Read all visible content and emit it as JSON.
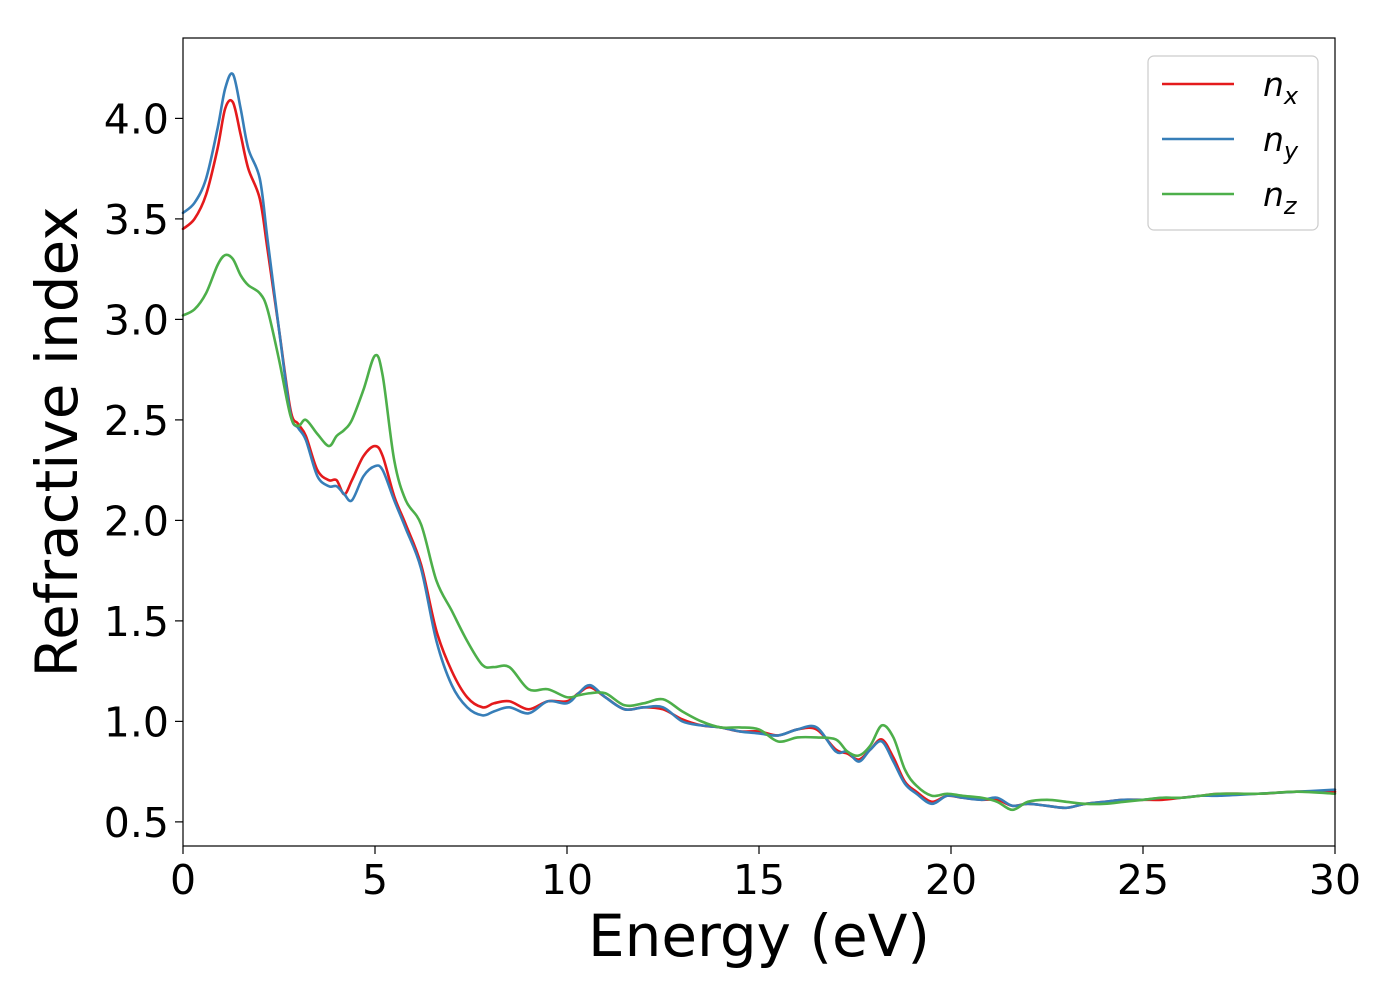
{
  "chart_data": {
    "type": "line",
    "title": "",
    "xlabel": "Energy (eV)",
    "ylabel": "Refractive index",
    "xlim": [
      0,
      30
    ],
    "ylim": [
      0.38,
      4.4
    ],
    "xticks": [
      0,
      5,
      10,
      15,
      20,
      25,
      30
    ],
    "yticks": [
      0.5,
      1.0,
      1.5,
      2.0,
      2.5,
      3.0,
      3.5,
      4.0
    ],
    "ytick_labels": [
      "0.5",
      "1.0",
      "1.5",
      "2.0",
      "2.5",
      "3.0",
      "3.5",
      "4.0"
    ],
    "grid": false,
    "legend_position": "top-right",
    "series": [
      {
        "name": "n",
        "subscript": "x",
        "color": "#e41a1c",
        "x": [
          0,
          0.3,
          0.6,
          0.9,
          1.1,
          1.3,
          1.5,
          1.7,
          2.0,
          2.2,
          2.5,
          2.8,
          3.0,
          3.2,
          3.5,
          3.8,
          4.0,
          4.2,
          4.4,
          4.7,
          5.0,
          5.2,
          5.5,
          5.8,
          6.2,
          6.6,
          7.0,
          7.4,
          7.8,
          8.1,
          8.5,
          9.0,
          9.5,
          10.0,
          10.3,
          10.6,
          11.0,
          11.5,
          12.0,
          12.5,
          13.0,
          13.5,
          14.0,
          14.5,
          15.0,
          15.5,
          16.0,
          16.5,
          17.0,
          17.3,
          17.6,
          17.9,
          18.2,
          18.5,
          18.8,
          19.1,
          19.5,
          19.9,
          20.3,
          20.8,
          21.2,
          21.6,
          22.0,
          22.5,
          23.0,
          23.5,
          24.0,
          24.5,
          25.0,
          25.5,
          26.0,
          26.5,
          27.0,
          28.0,
          29.0,
          30.0
        ],
        "values": [
          3.45,
          3.5,
          3.62,
          3.85,
          4.05,
          4.08,
          3.92,
          3.75,
          3.6,
          3.35,
          2.95,
          2.55,
          2.48,
          2.42,
          2.25,
          2.2,
          2.2,
          2.13,
          2.2,
          2.32,
          2.37,
          2.32,
          2.12,
          1.98,
          1.78,
          1.45,
          1.25,
          1.12,
          1.07,
          1.09,
          1.1,
          1.06,
          1.1,
          1.1,
          1.14,
          1.17,
          1.12,
          1.06,
          1.07,
          1.06,
          1.01,
          0.98,
          0.97,
          0.95,
          0.95,
          0.93,
          0.96,
          0.96,
          0.86,
          0.84,
          0.81,
          0.86,
          0.91,
          0.82,
          0.7,
          0.65,
          0.6,
          0.63,
          0.62,
          0.61,
          0.61,
          0.58,
          0.59,
          0.58,
          0.57,
          0.59,
          0.6,
          0.61,
          0.61,
          0.61,
          0.62,
          0.63,
          0.64,
          0.64,
          0.65,
          0.65
        ]
      },
      {
        "name": "n",
        "subscript": "y",
        "color": "#377eb8",
        "x": [
          0,
          0.3,
          0.6,
          0.9,
          1.1,
          1.3,
          1.5,
          1.7,
          2.0,
          2.2,
          2.5,
          2.8,
          3.0,
          3.2,
          3.5,
          3.8,
          4.0,
          4.2,
          4.4,
          4.7,
          5.0,
          5.2,
          5.5,
          5.8,
          6.2,
          6.6,
          7.0,
          7.4,
          7.8,
          8.1,
          8.5,
          9.0,
          9.5,
          10.0,
          10.3,
          10.6,
          11.0,
          11.5,
          12.0,
          12.5,
          13.0,
          13.5,
          14.0,
          14.5,
          15.0,
          15.5,
          16.0,
          16.5,
          17.0,
          17.3,
          17.6,
          17.9,
          18.2,
          18.5,
          18.8,
          19.1,
          19.5,
          19.9,
          20.3,
          20.8,
          21.2,
          21.6,
          22.0,
          22.5,
          23.0,
          23.5,
          24.0,
          24.5,
          25.0,
          25.5,
          26.0,
          26.5,
          27.0,
          28.0,
          29.0,
          30.0
        ],
        "values": [
          3.53,
          3.58,
          3.7,
          3.95,
          4.15,
          4.22,
          4.05,
          3.85,
          3.7,
          3.4,
          2.95,
          2.53,
          2.46,
          2.4,
          2.22,
          2.17,
          2.17,
          2.13,
          2.1,
          2.22,
          2.27,
          2.25,
          2.1,
          1.96,
          1.76,
          1.4,
          1.18,
          1.07,
          1.03,
          1.05,
          1.07,
          1.04,
          1.1,
          1.09,
          1.14,
          1.18,
          1.12,
          1.06,
          1.07,
          1.07,
          1.0,
          0.98,
          0.97,
          0.95,
          0.94,
          0.93,
          0.96,
          0.97,
          0.85,
          0.85,
          0.8,
          0.86,
          0.9,
          0.8,
          0.69,
          0.64,
          0.59,
          0.63,
          0.62,
          0.61,
          0.62,
          0.58,
          0.59,
          0.58,
          0.57,
          0.59,
          0.6,
          0.61,
          0.61,
          0.62,
          0.62,
          0.63,
          0.63,
          0.64,
          0.65,
          0.66
        ]
      },
      {
        "name": "n",
        "subscript": "z",
        "color": "#4daf4a",
        "x": [
          0,
          0.3,
          0.6,
          0.9,
          1.1,
          1.3,
          1.5,
          1.7,
          2.0,
          2.2,
          2.5,
          2.8,
          3.0,
          3.2,
          3.5,
          3.8,
          4.0,
          4.2,
          4.4,
          4.7,
          5.0,
          5.2,
          5.5,
          5.8,
          6.2,
          6.6,
          7.0,
          7.4,
          7.8,
          8.1,
          8.5,
          9.0,
          9.5,
          10.0,
          10.3,
          10.6,
          11.0,
          11.5,
          12.0,
          12.5,
          13.0,
          13.5,
          14.0,
          14.5,
          15.0,
          15.5,
          16.0,
          16.5,
          17.0,
          17.3,
          17.6,
          17.9,
          18.2,
          18.5,
          18.8,
          19.1,
          19.5,
          19.9,
          20.3,
          20.8,
          21.2,
          21.6,
          22.0,
          22.5,
          23.0,
          23.5,
          24.0,
          24.5,
          25.0,
          25.5,
          26.0,
          26.5,
          27.0,
          28.0,
          29.0,
          30.0
        ],
        "values": [
          3.02,
          3.05,
          3.13,
          3.27,
          3.32,
          3.3,
          3.22,
          3.17,
          3.13,
          3.05,
          2.8,
          2.52,
          2.47,
          2.5,
          2.43,
          2.37,
          2.42,
          2.45,
          2.5,
          2.65,
          2.82,
          2.72,
          2.3,
          2.1,
          1.98,
          1.7,
          1.55,
          1.4,
          1.28,
          1.27,
          1.27,
          1.16,
          1.16,
          1.12,
          1.13,
          1.14,
          1.14,
          1.08,
          1.09,
          1.11,
          1.05,
          1.0,
          0.97,
          0.97,
          0.96,
          0.9,
          0.92,
          0.92,
          0.91,
          0.85,
          0.83,
          0.88,
          0.98,
          0.92,
          0.76,
          0.68,
          0.63,
          0.64,
          0.63,
          0.62,
          0.6,
          0.56,
          0.6,
          0.61,
          0.6,
          0.59,
          0.59,
          0.6,
          0.61,
          0.62,
          0.62,
          0.63,
          0.64,
          0.64,
          0.65,
          0.64
        ]
      }
    ]
  }
}
